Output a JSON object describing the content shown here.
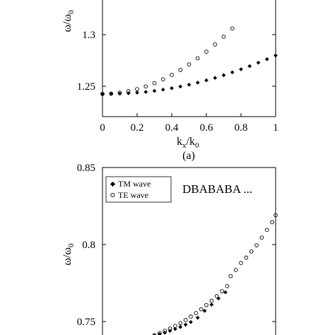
{
  "chart_data": [
    {
      "id": "a",
      "type": "scatter",
      "panel_label": "(a)",
      "xlabel": "k_x/k_0",
      "ylabel": "ω/ω_0",
      "xlim": [
        0,
        1
      ],
      "ylim": [
        1.235,
        1.335
      ],
      "x_ticks": [
        "0",
        "0.2",
        "0.4",
        "0.6",
        "0.8",
        "1"
      ],
      "y_ticks": [
        "1.25",
        "1.3"
      ],
      "grid": false,
      "series": [
        {
          "marker": "filled-diamond",
          "x": [
            0,
            0.05,
            0.1,
            0.15,
            0.2,
            0.25,
            0.3,
            0.35,
            0.4,
            0.45,
            0.5,
            0.55,
            0.6,
            0.65,
            0.7,
            0.75,
            0.8,
            0.85,
            0.9,
            0.95,
            1.0
          ],
          "y": [
            1.2425,
            1.2426,
            1.2428,
            1.2432,
            1.2438,
            1.2445,
            1.2455,
            1.2467,
            1.2481,
            1.2497,
            1.2515,
            1.2535,
            1.2557,
            1.2581,
            1.2607,
            1.2635,
            1.2664,
            1.2695,
            1.2728,
            1.2762,
            1.2798
          ]
        },
        {
          "marker": "open-circle",
          "x": [
            0,
            0.05,
            0.1,
            0.15,
            0.2,
            0.25,
            0.3,
            0.35,
            0.4,
            0.45,
            0.5,
            0.55,
            0.6,
            0.65,
            0.7,
            0.75
          ],
          "y": [
            1.2425,
            1.2428,
            1.2437,
            1.2451,
            1.2472,
            1.2498,
            1.253,
            1.2567,
            1.261,
            1.2658,
            1.2712,
            1.2771,
            1.2835,
            1.2905,
            1.298,
            1.306
          ]
        }
      ]
    },
    {
      "id": "b",
      "type": "scatter",
      "xlabel": "",
      "ylabel": "ω/ω_0",
      "xlim": [
        0,
        1
      ],
      "ylim": [
        0.73,
        0.85
      ],
      "y_ticks": [
        "0.75",
        "0.8",
        "0.85"
      ],
      "grid": false,
      "annotation": "DBABABA ...",
      "legend": {
        "placement": "top-left",
        "entries": [
          {
            "label": "TM wave",
            "marker": "filled-diamond"
          },
          {
            "label": "TE wave",
            "marker": "open-circle"
          }
        ]
      },
      "series": [
        {
          "name": "TM wave",
          "marker": "filled-diamond",
          "x": [
            0.3,
            0.33,
            0.36,
            0.39,
            0.42,
            0.45,
            0.48,
            0.51,
            0.55,
            0.59,
            0.63,
            0.67,
            0.71
          ],
          "y": [
            0.7408,
            0.7418,
            0.7428,
            0.744,
            0.7452,
            0.7465,
            0.748,
            0.7497,
            0.7525,
            0.757,
            0.761,
            0.765,
            0.769
          ]
        },
        {
          "name": "TE wave",
          "marker": "open-circle",
          "x": [
            0.3,
            0.33,
            0.36,
            0.39,
            0.42,
            0.45,
            0.48,
            0.51,
            0.54,
            0.57,
            0.6,
            0.63,
            0.66,
            0.69,
            0.72,
            0.74,
            0.77,
            0.8,
            0.83,
            0.86,
            0.89,
            0.92,
            0.95,
            0.98,
            1.0
          ],
          "y": [
            0.7412,
            0.7425,
            0.744,
            0.7455,
            0.7472,
            0.749,
            0.751,
            0.7532,
            0.7555,
            0.758,
            0.7607,
            0.7635,
            0.7665,
            0.7697,
            0.773,
            0.7795,
            0.7835,
            0.788,
            0.7915,
            0.7955,
            0.7995,
            0.8045,
            0.8095,
            0.8145,
            0.819
          ]
        }
      ]
    }
  ]
}
